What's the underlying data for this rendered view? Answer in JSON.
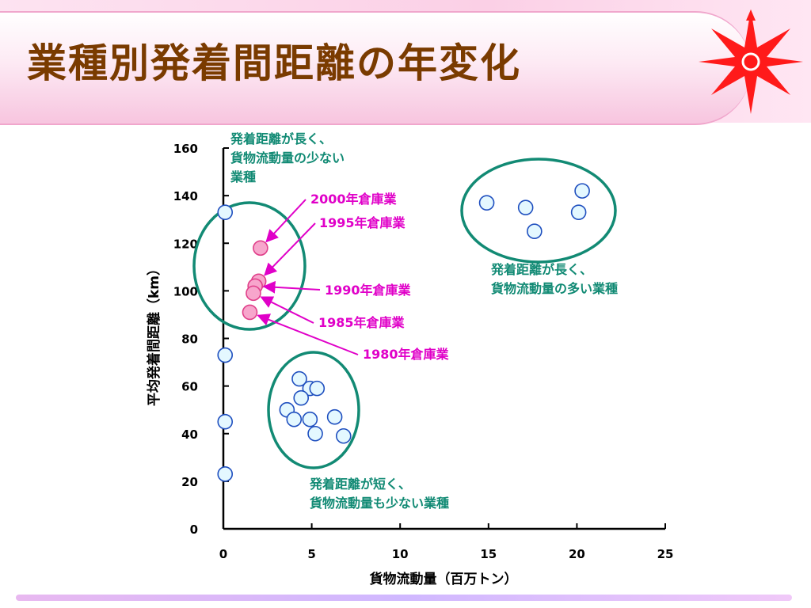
{
  "page": {
    "title": "業種別発着間距離の年変化"
  },
  "chart_data": {
    "type": "scatter",
    "title": "",
    "xlabel": "貨物流動量（百万トン）",
    "ylabel": "平均発着間距離（km）",
    "xlim": [
      0,
      25
    ],
    "ylim": [
      0,
      160
    ],
    "x_ticks": [
      "0",
      "5",
      "10",
      "15",
      "20",
      "25"
    ],
    "y_ticks": [
      "0",
      "20",
      "40",
      "60",
      "80",
      "100",
      "120",
      "140",
      "160"
    ],
    "grid": false,
    "colors": {
      "industry": "#1f4fbf",
      "industry_fill": "#e4f8ff",
      "year": "#e0408a",
      "year_fill": "#f7a6cc",
      "group": "#128a74",
      "annotation": "#e000c8",
      "group_text": "#118a74"
    },
    "series": [
      {
        "marker": "open-circle",
        "points": [
          {
            "x": 0.1,
            "y": 133
          },
          {
            "x": 0.1,
            "y": 73
          },
          {
            "x": 0.1,
            "y": 45
          },
          {
            "x": 0.1,
            "y": 23
          },
          {
            "x": 4.3,
            "y": 63
          },
          {
            "x": 4.9,
            "y": 59
          },
          {
            "x": 5.3,
            "y": 59
          },
          {
            "x": 4.4,
            "y": 55
          },
          {
            "x": 3.6,
            "y": 50
          },
          {
            "x": 4.0,
            "y": 46
          },
          {
            "x": 4.9,
            "y": 46
          },
          {
            "x": 6.3,
            "y": 47
          },
          {
            "x": 5.2,
            "y": 40
          },
          {
            "x": 6.8,
            "y": 39
          },
          {
            "x": 14.9,
            "y": 137
          },
          {
            "x": 17.1,
            "y": 135
          },
          {
            "x": 17.6,
            "y": 125
          },
          {
            "x": 20.3,
            "y": 142
          },
          {
            "x": 20.1,
            "y": 133
          }
        ]
      },
      {
        "marker": "filled-circle",
        "points": [
          {
            "x": 2.1,
            "y": 118,
            "label": "2000年倉庫業"
          },
          {
            "x": 2.0,
            "y": 104,
            "label": "1995年倉庫業"
          },
          {
            "x": 1.8,
            "y": 102,
            "label": "1990年倉庫業"
          },
          {
            "x": 1.7,
            "y": 99,
            "label": "1985年倉庫業"
          },
          {
            "x": 1.5,
            "y": 91,
            "label": "1980年倉庫業"
          }
        ]
      }
    ],
    "groups": [
      {
        "lines": [
          "発着距離が長く、",
          "貨物流動量の少ない",
          "業種"
        ]
      },
      {
        "lines": [
          "発着距離が長く、",
          "貨物流動量の多い業種"
        ]
      },
      {
        "lines": [
          "発着距離が短く、",
          "貨物流動量も少ない業種"
        ]
      }
    ]
  }
}
